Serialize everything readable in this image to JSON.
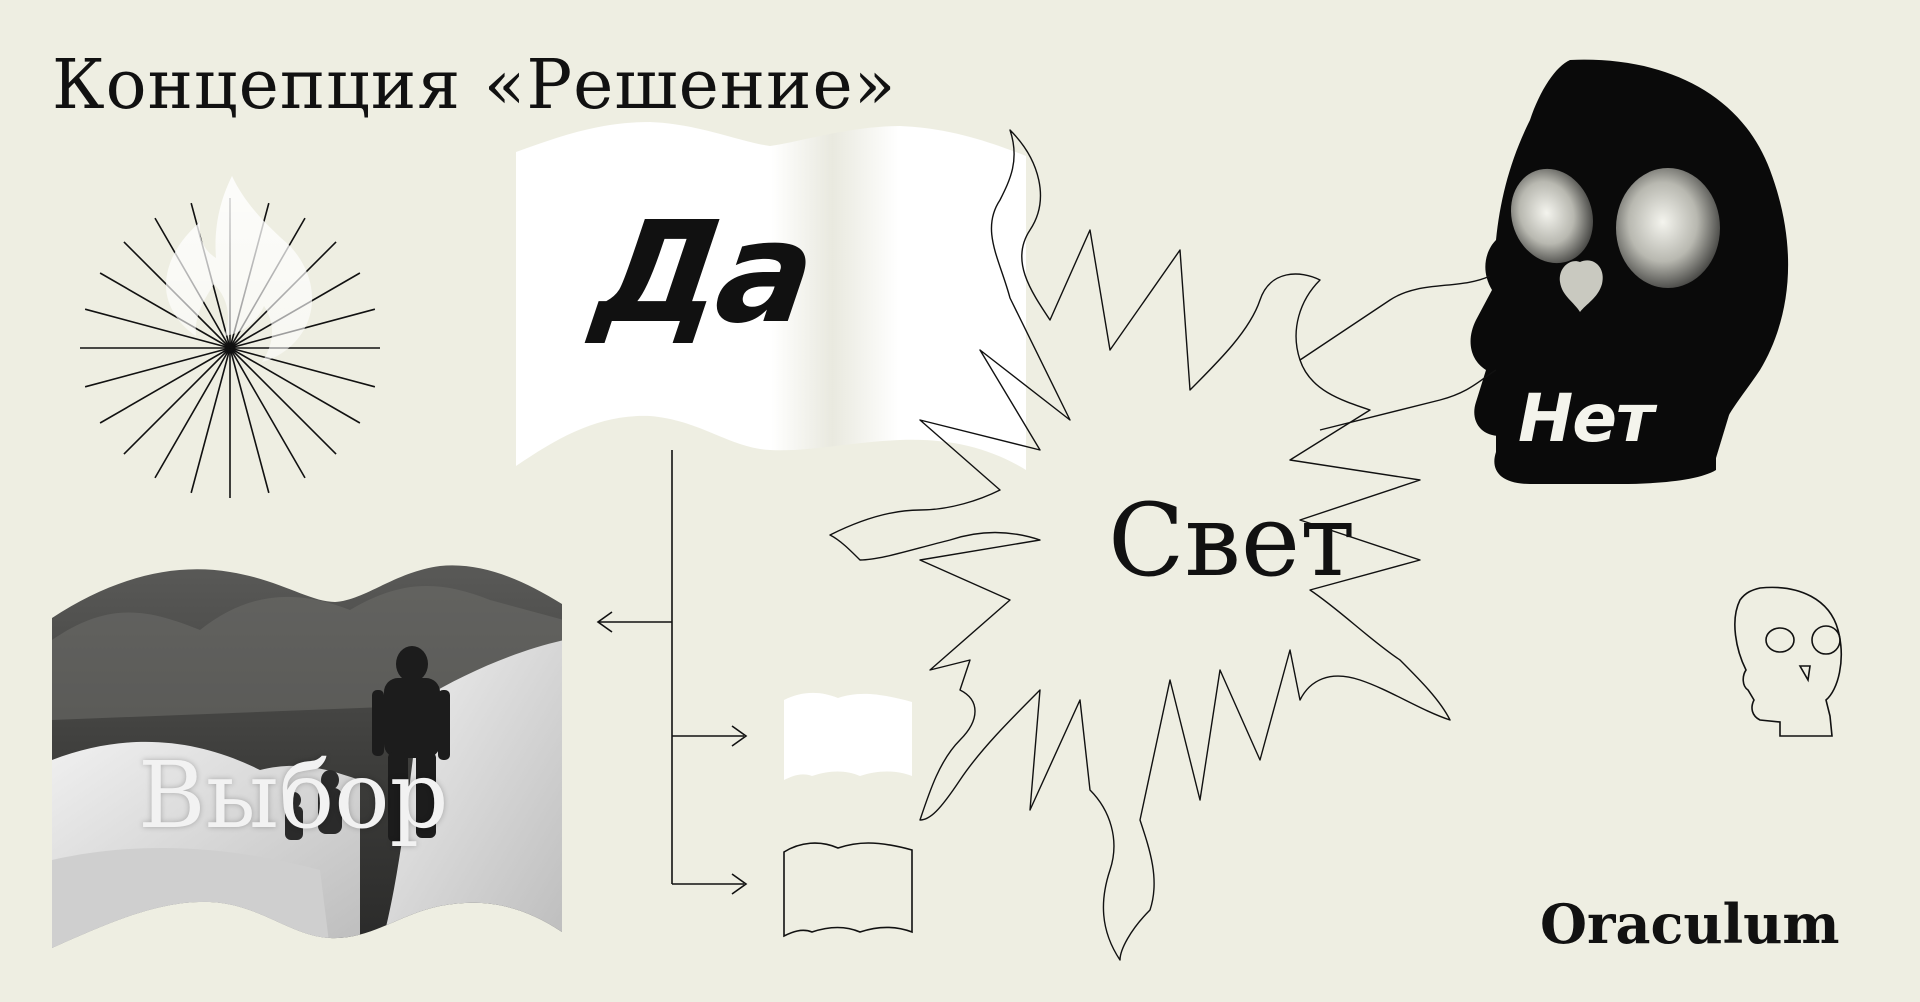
{
  "title": "Концепция «Решение»",
  "brand": "Oraculum",
  "words": {
    "yes": "Да",
    "no": "Нет",
    "light": "Свет",
    "choice": "Выбор"
  },
  "icons": {
    "flame": "flame-icon",
    "sunburst": "sunburst-icon",
    "book_large": "open-book-icon",
    "book_small_filled": "open-book-icon",
    "book_small_outline": "open-book-outline-icon",
    "skull_large": "skull-icon",
    "skull_small": "skull-outline-icon",
    "flame_star": "star-flame-outline-icon",
    "arrows": "arrow-icon"
  },
  "colors": {
    "background": "#eeeee2",
    "ink": "#111111",
    "paper": "#ffffff"
  }
}
